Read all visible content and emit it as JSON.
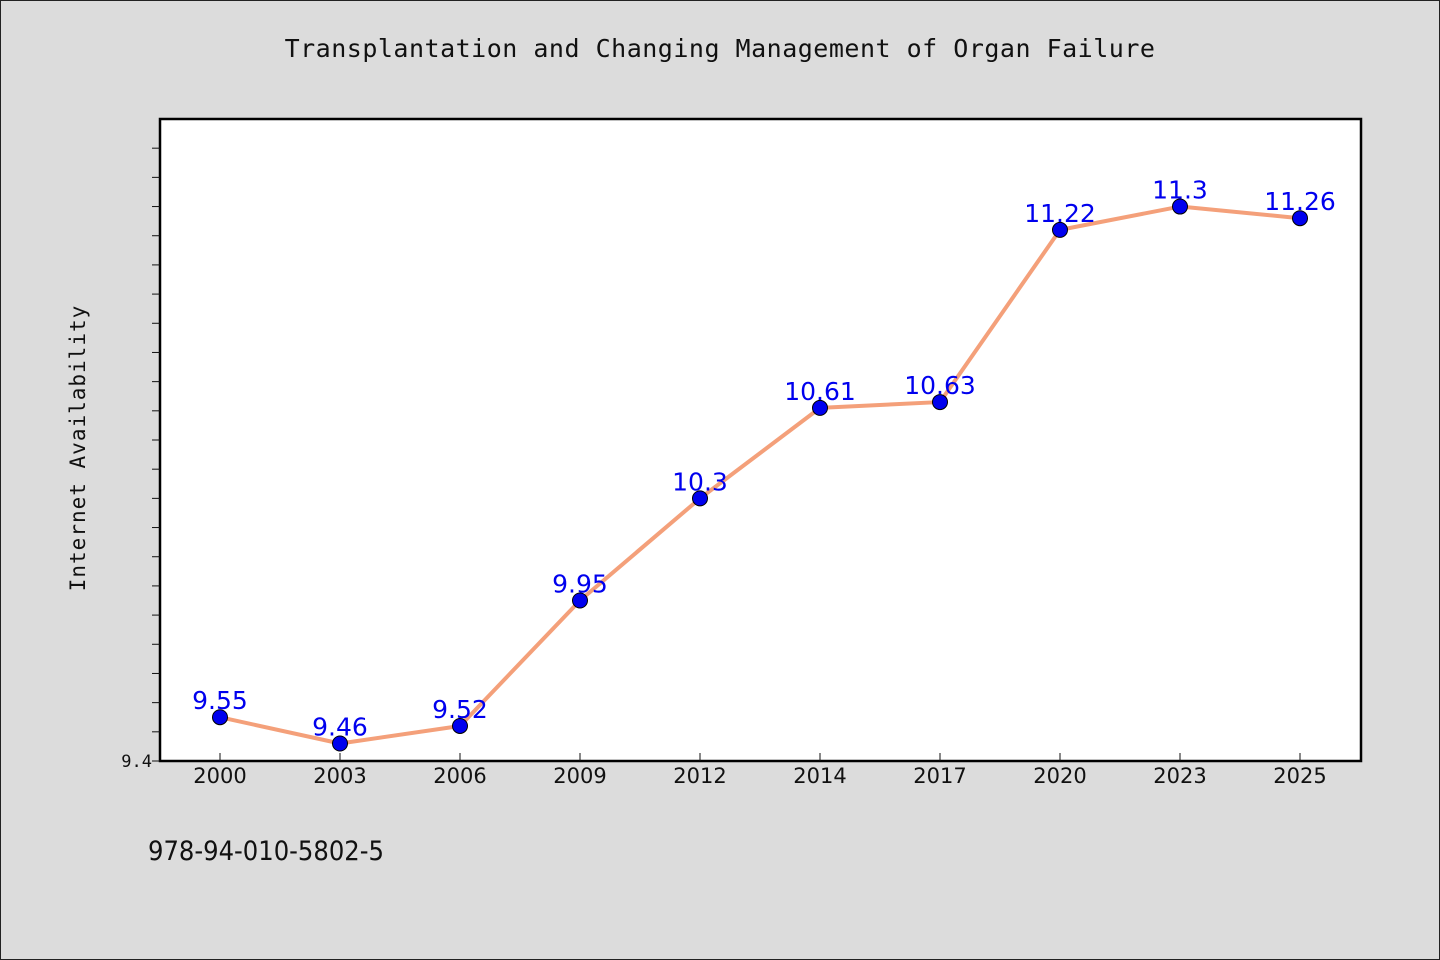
{
  "chart_data": {
    "type": "line",
    "title": "Transplantation and Changing Management of Organ Failure",
    "xlabel": "",
    "ylabel": "Internet Availability",
    "categories": [
      "2000",
      "2003",
      "2006",
      "2009",
      "2012",
      "2014",
      "2017",
      "2020",
      "2023",
      "2025"
    ],
    "series": [
      {
        "values": [
          9.55,
          9.46,
          9.52,
          9.95,
          10.3,
          10.61,
          10.63,
          11.22,
          11.3,
          11.26
        ],
        "data_labels": [
          "9.55",
          "9.46",
          "9.52",
          "9.95",
          "10.3",
          "10.61",
          "10.63",
          "11.22",
          "11.3",
          "11.26"
        ]
      }
    ],
    "y_tick_labels": [
      "9.4"
    ],
    "ylim": [
      9.4,
      11.6
    ],
    "grid": false,
    "line_color": "#f4a07a",
    "marker_color": "#0000ee",
    "label_color": "#0000ee"
  },
  "footer": {
    "code": "978-94-010-5802-5"
  }
}
